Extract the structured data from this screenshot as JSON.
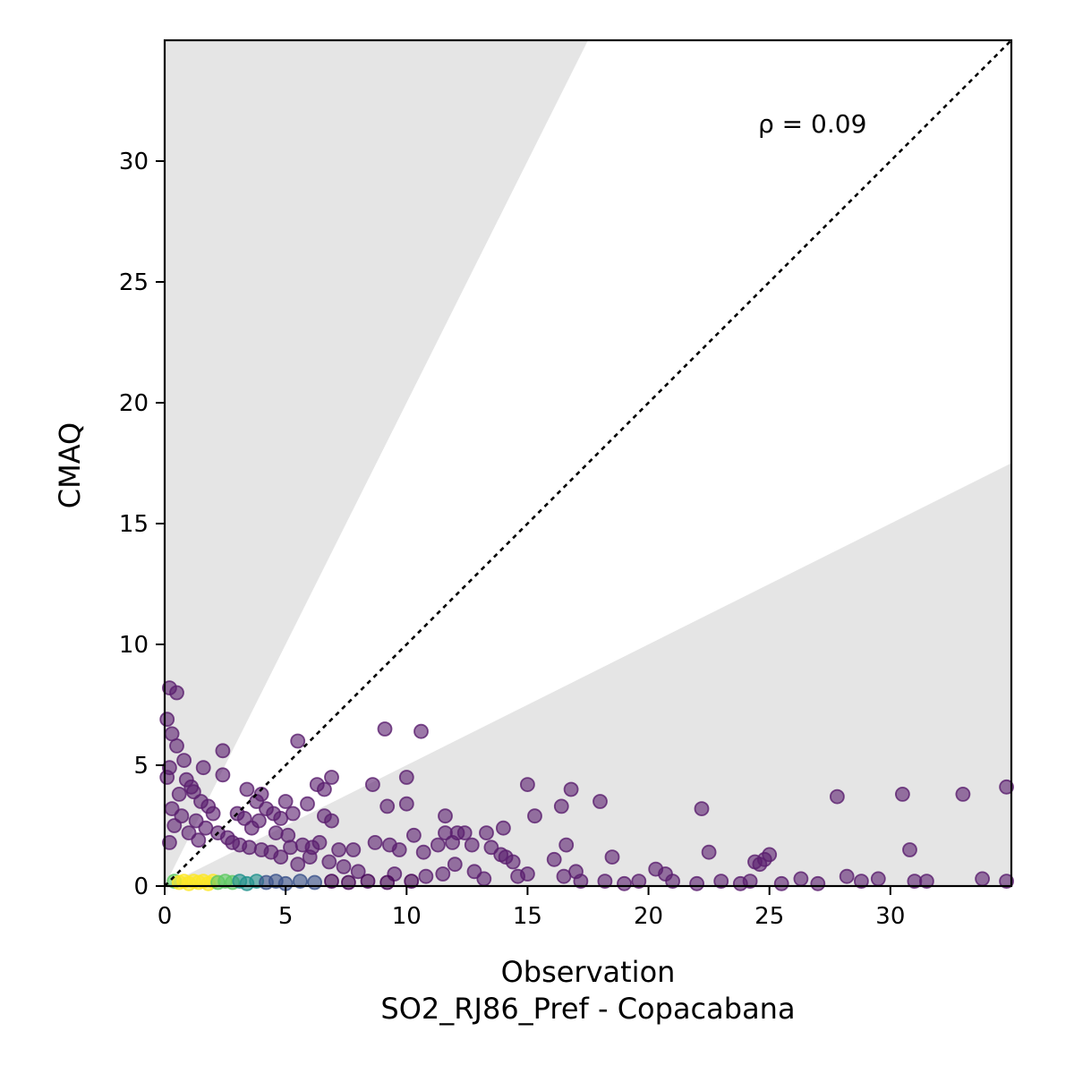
{
  "chart_data": {
    "type": "scatter",
    "xlabel": "Observation",
    "subtitle": "SO2_RJ86_Pref - Copacabana",
    "ylabel": "CMAQ",
    "annotation": "ρ = 0.09",
    "xlim": [
      0,
      35
    ],
    "ylim": [
      0,
      35
    ],
    "xticks": [
      "0",
      "5",
      "10",
      "15",
      "20",
      "25",
      "30"
    ],
    "yticks": [
      "0",
      "5",
      "10",
      "15",
      "20",
      "25",
      "30"
    ],
    "xtick_values": [
      0,
      5,
      10,
      15,
      20,
      25,
      30
    ],
    "ytick_values": [
      0,
      5,
      10,
      15,
      20,
      25,
      30
    ],
    "grid": false,
    "identity_line": true,
    "factor_of_two_band": {
      "upper_slope": 2,
      "lower_slope": 0.5,
      "outside_color": "#e5e5e5"
    },
    "point_colormap": "viridis",
    "point_color_default": "#5a1e6e",
    "points": [
      {
        "x": 0.2,
        "y": 8.2
      },
      {
        "x": 0.5,
        "y": 8.0
      },
      {
        "x": 0.1,
        "y": 6.9
      },
      {
        "x": 0.3,
        "y": 6.3
      },
      {
        "x": 0.5,
        "y": 5.8
      },
      {
        "x": 0.8,
        "y": 5.2
      },
      {
        "x": 0.2,
        "y": 4.9
      },
      {
        "x": 0.1,
        "y": 4.5
      },
      {
        "x": 0.9,
        "y": 4.4
      },
      {
        "x": 1.1,
        "y": 4.1
      },
      {
        "x": 1.2,
        "y": 3.9
      },
      {
        "x": 0.6,
        "y": 3.8
      },
      {
        "x": 1.5,
        "y": 3.5
      },
      {
        "x": 1.8,
        "y": 3.3
      },
      {
        "x": 2.0,
        "y": 3.0
      },
      {
        "x": 0.3,
        "y": 3.2
      },
      {
        "x": 0.7,
        "y": 2.9
      },
      {
        "x": 1.3,
        "y": 2.7
      },
      {
        "x": 1.7,
        "y": 2.4
      },
      {
        "x": 2.2,
        "y": 2.2
      },
      {
        "x": 0.4,
        "y": 2.5
      },
      {
        "x": 1.0,
        "y": 2.2
      },
      {
        "x": 2.6,
        "y": 2.0
      },
      {
        "x": 0.2,
        "y": 1.8
      },
      {
        "x": 1.4,
        "y": 1.9
      },
      {
        "x": 2.4,
        "y": 5.6
      },
      {
        "x": 2.4,
        "y": 4.6
      },
      {
        "x": 1.6,
        "y": 4.9
      },
      {
        "x": 3.4,
        "y": 4.0
      },
      {
        "x": 4.0,
        "y": 3.8
      },
      {
        "x": 3.0,
        "y": 3.0
      },
      {
        "x": 3.3,
        "y": 2.8
      },
      {
        "x": 3.8,
        "y": 3.5
      },
      {
        "x": 4.2,
        "y": 3.2
      },
      {
        "x": 4.5,
        "y": 3.0
      },
      {
        "x": 4.8,
        "y": 2.8
      },
      {
        "x": 5.0,
        "y": 3.5
      },
      {
        "x": 5.3,
        "y": 3.0
      },
      {
        "x": 5.5,
        "y": 6.0
      },
      {
        "x": 5.9,
        "y": 3.4
      },
      {
        "x": 6.3,
        "y": 4.2
      },
      {
        "x": 6.6,
        "y": 4.0
      },
      {
        "x": 6.9,
        "y": 4.5
      },
      {
        "x": 6.6,
        "y": 2.9
      },
      {
        "x": 6.9,
        "y": 2.7
      },
      {
        "x": 3.6,
        "y": 2.4
      },
      {
        "x": 3.9,
        "y": 2.7
      },
      {
        "x": 4.6,
        "y": 2.2
      },
      {
        "x": 5.1,
        "y": 2.1
      },
      {
        "x": 2.8,
        "y": 1.8
      },
      {
        "x": 3.1,
        "y": 1.7
      },
      {
        "x": 3.5,
        "y": 1.6
      },
      {
        "x": 4.0,
        "y": 1.5
      },
      {
        "x": 4.4,
        "y": 1.4
      },
      {
        "x": 5.2,
        "y": 1.6
      },
      {
        "x": 5.7,
        "y": 1.7
      },
      {
        "x": 6.1,
        "y": 1.6
      },
      {
        "x": 6.4,
        "y": 1.8
      },
      {
        "x": 7.2,
        "y": 1.5
      },
      {
        "x": 7.8,
        "y": 1.5
      },
      {
        "x": 4.8,
        "y": 1.2
      },
      {
        "x": 6.0,
        "y": 1.2
      },
      {
        "x": 6.8,
        "y": 1.0
      },
      {
        "x": 5.5,
        "y": 0.9
      },
      {
        "x": 7.4,
        "y": 0.8
      },
      {
        "x": 8.6,
        "y": 4.2
      },
      {
        "x": 9.1,
        "y": 6.5
      },
      {
        "x": 10.6,
        "y": 6.4
      },
      {
        "x": 10.0,
        "y": 4.5
      },
      {
        "x": 9.2,
        "y": 3.3
      },
      {
        "x": 10.0,
        "y": 3.4
      },
      {
        "x": 8.7,
        "y": 1.8
      },
      {
        "x": 9.3,
        "y": 1.7
      },
      {
        "x": 9.7,
        "y": 1.5
      },
      {
        "x": 10.3,
        "y": 2.1
      },
      {
        "x": 10.7,
        "y": 1.4
      },
      {
        "x": 11.6,
        "y": 2.9
      },
      {
        "x": 11.3,
        "y": 1.7
      },
      {
        "x": 11.6,
        "y": 2.2
      },
      {
        "x": 11.9,
        "y": 1.8
      },
      {
        "x": 12.1,
        "y": 2.2
      },
      {
        "x": 12.4,
        "y": 2.2
      },
      {
        "x": 12.7,
        "y": 1.7
      },
      {
        "x": 13.3,
        "y": 2.2
      },
      {
        "x": 13.5,
        "y": 1.6
      },
      {
        "x": 14.0,
        "y": 2.4
      },
      {
        "x": 14.1,
        "y": 1.2
      },
      {
        "x": 14.4,
        "y": 1.0
      },
      {
        "x": 13.9,
        "y": 1.3
      },
      {
        "x": 12.0,
        "y": 0.9
      },
      {
        "x": 8.0,
        "y": 0.6
      },
      {
        "x": 9.5,
        "y": 0.5
      },
      {
        "x": 10.8,
        "y": 0.4
      },
      {
        "x": 11.5,
        "y": 0.5
      },
      {
        "x": 12.8,
        "y": 0.6
      },
      {
        "x": 13.2,
        "y": 0.3
      },
      {
        "x": 14.6,
        "y": 0.4
      },
      {
        "x": 15.0,
        "y": 0.5
      },
      {
        "x": 15.0,
        "y": 4.2
      },
      {
        "x": 15.3,
        "y": 2.9
      },
      {
        "x": 16.1,
        "y": 1.1
      },
      {
        "x": 16.4,
        "y": 3.3
      },
      {
        "x": 16.6,
        "y": 1.7
      },
      {
        "x": 16.8,
        "y": 4.0
      },
      {
        "x": 16.5,
        "y": 0.4
      },
      {
        "x": 17.0,
        "y": 0.6
      },
      {
        "x": 17.2,
        "y": 0.2
      },
      {
        "x": 18.0,
        "y": 3.5
      },
      {
        "x": 18.5,
        "y": 1.2
      },
      {
        "x": 18.2,
        "y": 0.2
      },
      {
        "x": 19.0,
        "y": 0.1
      },
      {
        "x": 19.6,
        "y": 0.2
      },
      {
        "x": 20.3,
        "y": 0.7
      },
      {
        "x": 20.7,
        "y": 0.5
      },
      {
        "x": 21.0,
        "y": 0.2
      },
      {
        "x": 22.2,
        "y": 3.2
      },
      {
        "x": 22.5,
        "y": 1.4
      },
      {
        "x": 22.0,
        "y": 0.1
      },
      {
        "x": 23.0,
        "y": 0.2
      },
      {
        "x": 23.8,
        "y": 0.1
      },
      {
        "x": 24.4,
        "y": 1.0
      },
      {
        "x": 24.6,
        "y": 0.9
      },
      {
        "x": 24.8,
        "y": 1.1
      },
      {
        "x": 25.0,
        "y": 1.3
      },
      {
        "x": 24.2,
        "y": 0.2
      },
      {
        "x": 25.5,
        "y": 0.1
      },
      {
        "x": 26.3,
        "y": 0.3
      },
      {
        "x": 27.0,
        "y": 0.1
      },
      {
        "x": 27.8,
        "y": 3.7
      },
      {
        "x": 28.2,
        "y": 0.4
      },
      {
        "x": 28.8,
        "y": 0.2
      },
      {
        "x": 29.5,
        "y": 0.3
      },
      {
        "x": 30.5,
        "y": 3.8
      },
      {
        "x": 30.8,
        "y": 1.5
      },
      {
        "x": 31.0,
        "y": 0.2
      },
      {
        "x": 31.5,
        "y": 0.2
      },
      {
        "x": 33.0,
        "y": 3.8
      },
      {
        "x": 33.8,
        "y": 0.3
      },
      {
        "x": 34.8,
        "y": 4.1
      },
      {
        "x": 34.8,
        "y": 0.2
      },
      {
        "x": 0.4,
        "y": 0.2
      },
      {
        "x": 0.6,
        "y": 0.15
      },
      {
        "x": 0.8,
        "y": 0.2
      },
      {
        "x": 1.0,
        "y": 0.1
      },
      {
        "x": 1.2,
        "y": 0.2
      },
      {
        "x": 1.4,
        "y": 0.15
      },
      {
        "x": 1.6,
        "y": 0.2
      },
      {
        "x": 1.8,
        "y": 0.1
      },
      {
        "x": 2.0,
        "y": 0.2
      },
      {
        "x": 2.2,
        "y": 0.15
      },
      {
        "x": 2.5,
        "y": 0.2
      },
      {
        "x": 2.8,
        "y": 0.15
      },
      {
        "x": 3.1,
        "y": 0.2
      },
      {
        "x": 3.4,
        "y": 0.1
      },
      {
        "x": 3.8,
        "y": 0.2
      },
      {
        "x": 4.2,
        "y": 0.15
      },
      {
        "x": 4.6,
        "y": 0.2
      },
      {
        "x": 5.0,
        "y": 0.1
      },
      {
        "x": 5.6,
        "y": 0.2
      },
      {
        "x": 6.2,
        "y": 0.15
      },
      {
        "x": 6.9,
        "y": 0.2
      },
      {
        "x": 7.6,
        "y": 0.15
      },
      {
        "x": 8.4,
        "y": 0.2
      },
      {
        "x": 9.2,
        "y": 0.15
      },
      {
        "x": 10.2,
        "y": 0.2
      }
    ]
  }
}
